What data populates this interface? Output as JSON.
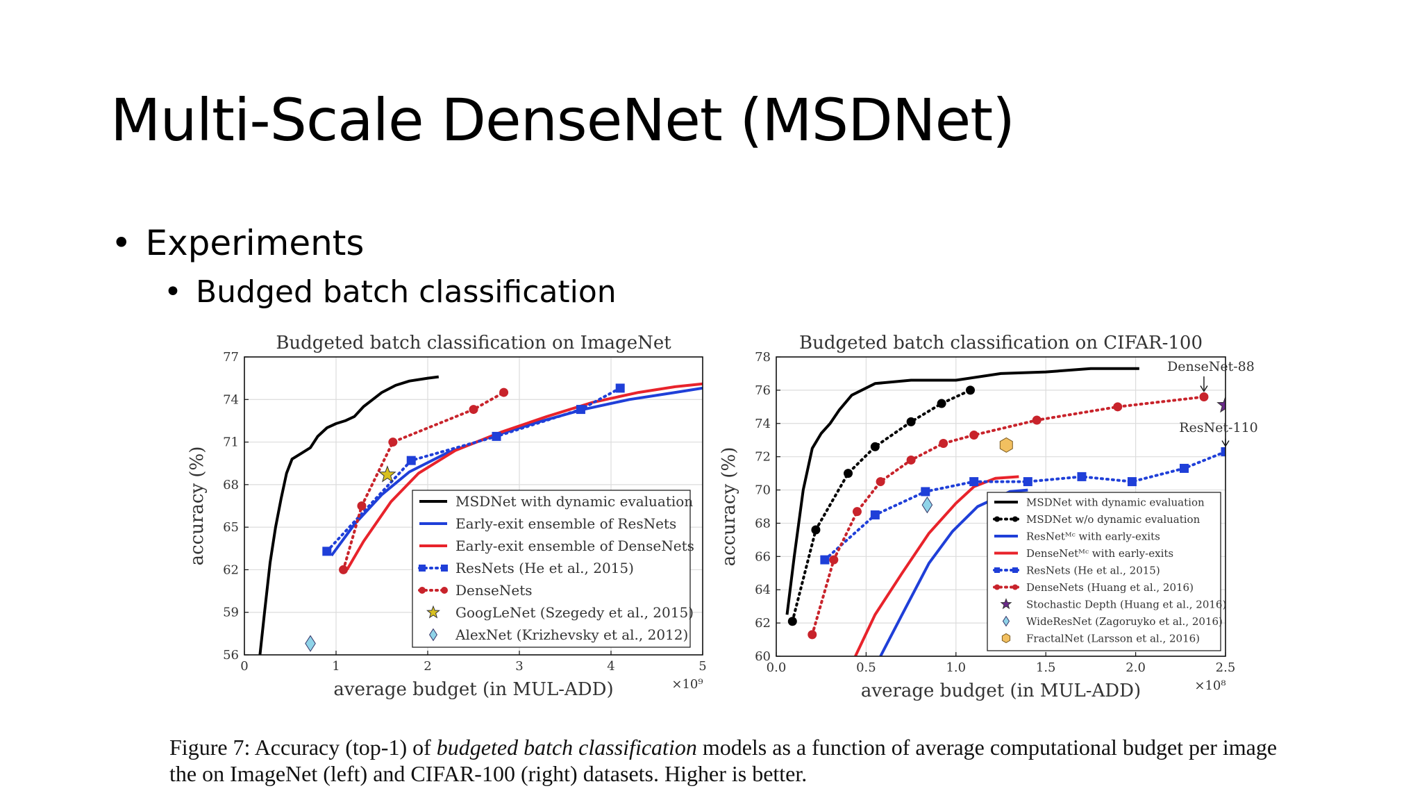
{
  "slide": {
    "title": "Multi-Scale DenseNet (MSDNet)",
    "bullet_1": "Experiments",
    "bullet_2": "Budged batch classification",
    "caption_prefix": "Figure 7:  Accuracy (top-1) of ",
    "caption_em": "budgeted batch classification",
    "caption_suffix": " models as a function of average computational budget per image the on ImageNet (left) and CIFAR-100 (right) datasets. Higher is better."
  },
  "chart_data": [
    {
      "type": "line",
      "title": "Budgeted batch classification on ImageNet",
      "xlabel": "average budget (in MUL-ADD)",
      "ylabel": "accuracy (%)",
      "x_multiplier": "×10⁹",
      "xlim": [
        0,
        5
      ],
      "ylim": [
        56,
        77
      ],
      "xticks": [
        0,
        1,
        2,
        3,
        4,
        5
      ],
      "yticks": [
        56,
        59,
        62,
        65,
        68,
        71,
        74,
        77
      ],
      "grid": true,
      "legend_position": "bottom-right",
      "series": [
        {
          "name": "MSDNet with dynamic evaluation",
          "color": "#000000",
          "style": "solid",
          "points": [
            [
              0.17,
              56
            ],
            [
              0.22,
              59
            ],
            [
              0.28,
              62.5
            ],
            [
              0.34,
              65
            ],
            [
              0.4,
              67
            ],
            [
              0.46,
              68.8
            ],
            [
              0.52,
              69.8
            ],
            [
              0.62,
              70.2
            ],
            [
              0.72,
              70.6
            ],
            [
              0.8,
              71.4
            ],
            [
              0.9,
              72.0
            ],
            [
              1.0,
              72.3
            ],
            [
              1.1,
              72.5
            ],
            [
              1.2,
              72.8
            ],
            [
              1.3,
              73.5
            ],
            [
              1.4,
              74.0
            ],
            [
              1.5,
              74.5
            ],
            [
              1.65,
              75.0
            ],
            [
              1.8,
              75.3
            ],
            [
              2.0,
              75.5
            ],
            [
              2.12,
              75.6
            ]
          ]
        },
        {
          "name": "Early-exit ensemble of ResNets",
          "color": "#1f3fd8",
          "style": "solid",
          "points": [
            [
              0.95,
              63.0
            ],
            [
              1.2,
              65.2
            ],
            [
              1.5,
              67.3
            ],
            [
              1.8,
              68.9
            ],
            [
              2.2,
              70.2
            ],
            [
              2.7,
              71.4
            ],
            [
              3.2,
              72.4
            ],
            [
              3.7,
              73.3
            ],
            [
              4.2,
              74.0
            ],
            [
              4.7,
              74.5
            ],
            [
              5.0,
              74.8
            ]
          ]
        },
        {
          "name": "Early-exit ensemble of DenseNets",
          "color": "#e8232b",
          "style": "solid",
          "points": [
            [
              1.12,
              62.0
            ],
            [
              1.3,
              64.0
            ],
            [
              1.6,
              66.8
            ],
            [
              1.9,
              68.8
            ],
            [
              2.3,
              70.4
            ],
            [
              2.8,
              71.7
            ],
            [
              3.3,
              72.8
            ],
            [
              3.8,
              73.8
            ],
            [
              4.3,
              74.5
            ],
            [
              4.7,
              74.9
            ],
            [
              5.0,
              75.1
            ]
          ]
        },
        {
          "name": "ResNets (He et al., 2015)",
          "color": "#1f3fd8",
          "style": "dotted",
          "marker": "square",
          "points": [
            [
              0.9,
              63.3
            ],
            [
              1.82,
              69.7
            ],
            [
              2.75,
              71.4
            ],
            [
              3.67,
              73.3
            ],
            [
              4.1,
              74.8
            ]
          ]
        },
        {
          "name": "DenseNets",
          "color": "#c8232b",
          "style": "dotted",
          "marker": "circle",
          "points": [
            [
              1.08,
              62.0
            ],
            [
              1.28,
              66.5
            ],
            [
              1.62,
              71.0
            ],
            [
              2.5,
              73.3
            ],
            [
              2.83,
              74.5
            ]
          ]
        },
        {
          "name": "GoogLeNet (Szegedy et al., 2015)",
          "color": "#d8c020",
          "style": "none",
          "marker": "star",
          "points": [
            [
              1.56,
              68.7
            ]
          ]
        },
        {
          "name": "AlexNet (Krizhevsky et al., 2012)",
          "color": "#8fd3e8",
          "style": "none",
          "marker": "diamond",
          "points": [
            [
              0.72,
              56.8
            ]
          ]
        }
      ]
    },
    {
      "type": "line",
      "title": "Budgeted batch classification on CIFAR-100",
      "xlabel": "average budget (in MUL-ADD)",
      "ylabel": "accuracy (%)",
      "x_multiplier": "×10⁸",
      "xlim": [
        0,
        2.5
      ],
      "ylim": [
        60,
        78
      ],
      "xticks": [
        0.0,
        0.5,
        1.0,
        1.5,
        2.0,
        2.5
      ],
      "yticks": [
        60,
        62,
        64,
        66,
        68,
        70,
        72,
        74,
        76,
        78
      ],
      "grid": true,
      "legend_position": "bottom-right",
      "annotations": [
        "DenseNet-88",
        "ResNet-110"
      ],
      "series": [
        {
          "name": "MSDNet with dynamic evaluation",
          "color": "#000000",
          "style": "solid",
          "points": [
            [
              0.06,
              62.5
            ],
            [
              0.1,
              66
            ],
            [
              0.15,
              70
            ],
            [
              0.2,
              72.5
            ],
            [
              0.25,
              73.4
            ],
            [
              0.3,
              74.0
            ],
            [
              0.35,
              74.8
            ],
            [
              0.42,
              75.7
            ],
            [
              0.55,
              76.4
            ],
            [
              0.75,
              76.6
            ],
            [
              1.0,
              76.6
            ],
            [
              1.25,
              77.0
            ],
            [
              1.5,
              77.1
            ],
            [
              1.75,
              77.3
            ],
            [
              2.0,
              77.3
            ],
            [
              2.02,
              77.3
            ]
          ]
        },
        {
          "name": "MSDNet w/o dynamic evaluation",
          "color": "#000000",
          "style": "dotted",
          "marker": "circle",
          "points": [
            [
              0.09,
              62.1
            ],
            [
              0.22,
              67.6
            ],
            [
              0.4,
              71.0
            ],
            [
              0.55,
              72.6
            ],
            [
              0.75,
              74.1
            ],
            [
              0.92,
              75.2
            ],
            [
              1.08,
              76.0
            ]
          ]
        },
        {
          "name": "ResNetᴹᶜ with early-exits",
          "color": "#1f3fd8",
          "style": "solid",
          "points": [
            [
              0.58,
              60
            ],
            [
              0.7,
              62.5
            ],
            [
              0.85,
              65.6
            ],
            [
              0.98,
              67.5
            ],
            [
              1.12,
              69.0
            ],
            [
              1.3,
              69.9
            ],
            [
              1.4,
              70.0
            ]
          ]
        },
        {
          "name": "DenseNetᴹᶜ with early-exits",
          "color": "#e8232b",
          "style": "solid",
          "points": [
            [
              0.44,
              60
            ],
            [
              0.55,
              62.5
            ],
            [
              0.7,
              65.0
            ],
            [
              0.85,
              67.4
            ],
            [
              1.0,
              69.2
            ],
            [
              1.1,
              70.2
            ],
            [
              1.22,
              70.7
            ],
            [
              1.35,
              70.8
            ]
          ]
        },
        {
          "name": "ResNets (He et al., 2015)",
          "color": "#1f3fd8",
          "style": "dotted",
          "marker": "square",
          "points": [
            [
              0.27,
              65.8
            ],
            [
              0.55,
              68.5
            ],
            [
              0.83,
              69.9
            ],
            [
              1.1,
              70.5
            ],
            [
              1.4,
              70.5
            ],
            [
              1.7,
              70.8
            ],
            [
              1.98,
              70.5
            ],
            [
              2.27,
              71.3
            ],
            [
              2.5,
              72.3
            ]
          ]
        },
        {
          "name": "DenseNets (Huang et al., 2016)",
          "color": "#c8232b",
          "style": "dotted",
          "marker": "circle",
          "points": [
            [
              0.2,
              61.3
            ],
            [
              0.32,
              65.8
            ],
            [
              0.45,
              68.7
            ],
            [
              0.58,
              70.5
            ],
            [
              0.75,
              71.8
            ],
            [
              0.93,
              72.8
            ],
            [
              1.1,
              73.3
            ],
            [
              1.45,
              74.2
            ],
            [
              1.9,
              75.0
            ],
            [
              2.38,
              75.6
            ]
          ]
        },
        {
          "name": "Stochastic Depth (Huang et al., 2016)",
          "color": "#6a2a8a",
          "style": "none",
          "marker": "star",
          "points": [
            [
              2.5,
              75.1
            ]
          ]
        },
        {
          "name": "WideResNet (Zagoruyko et al., 2016)",
          "color": "#8fd3e8",
          "style": "none",
          "marker": "diamond",
          "points": [
            [
              0.84,
              69.1
            ]
          ]
        },
        {
          "name": "FractalNet (Larsson et al., 2016)",
          "color": "#f2c060",
          "style": "none",
          "marker": "hexagon",
          "points": [
            [
              1.28,
              72.7
            ]
          ]
        }
      ]
    }
  ]
}
